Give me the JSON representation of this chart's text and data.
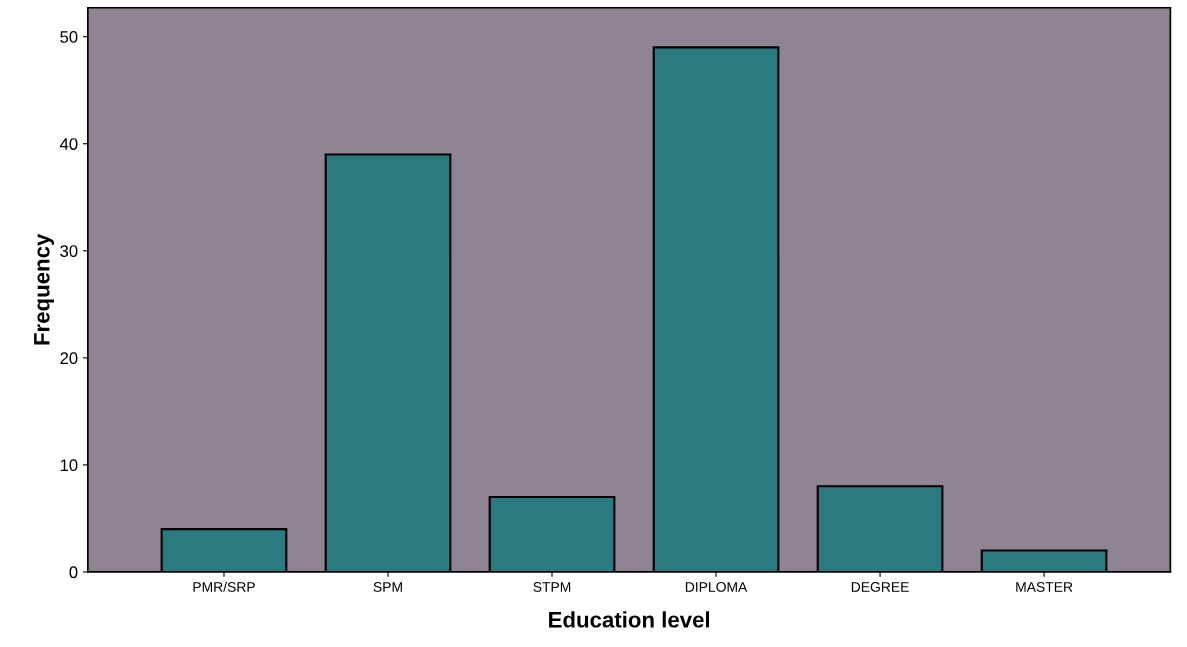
{
  "chart_data": {
    "type": "bar",
    "xlabel": "Education level",
    "ylabel": "Frequency",
    "categories": [
      "PMR/SRP",
      "SPM",
      "STPM",
      "DIPLOMA",
      "DEGREE",
      "MASTER"
    ],
    "values": [
      4,
      39,
      7,
      49,
      8,
      2
    ],
    "color": "#2b7a80",
    "ylim": [
      0,
      52.7
    ],
    "yticks": [
      0,
      10,
      20,
      30,
      40,
      50
    ],
    "grid": false,
    "legend": false
  }
}
